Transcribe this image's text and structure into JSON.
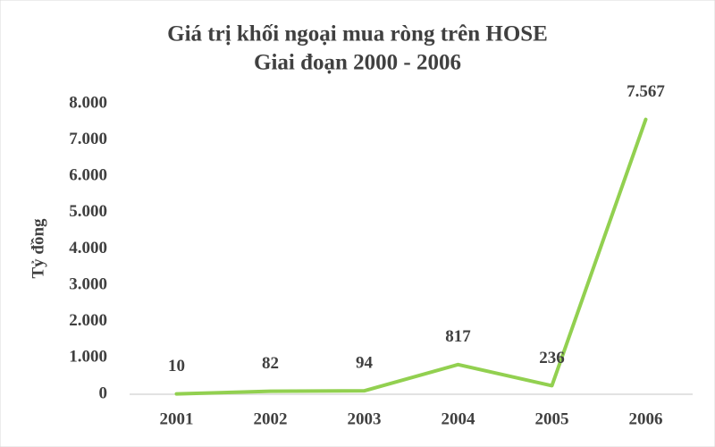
{
  "chart_data": {
    "type": "line",
    "title": "Giá trị khối ngoại mua ròng trên HOSE",
    "subtitle": "Giai đoạn 2000 - 2006",
    "y_label": "Tỷ đồng",
    "categories": [
      "2001",
      "2002",
      "2003",
      "2004",
      "2005",
      "2006"
    ],
    "values": [
      10,
      82,
      94,
      817,
      236,
      7567
    ],
    "value_labels": [
      "10",
      "82",
      "94",
      "817",
      "236",
      "7.567"
    ],
    "color": "#92d050",
    "ylim": [
      0,
      8000
    ],
    "yticks": [
      0,
      {
        "value": 1000,
        "label": "1.000"
      },
      {
        "value": 2000,
        "label": "2.000"
      },
      {
        "value": 3000,
        "label": "3.000"
      },
      {
        "value": 4000,
        "label": "4.000"
      },
      {
        "value": 5000,
        "label": "5.000"
      },
      {
        "value": 6000,
        "label": "6.000"
      },
      {
        "value": 7000,
        "label": "7.000"
      },
      {
        "value": 8000,
        "label": "8.000"
      }
    ],
    "grid": false
  }
}
